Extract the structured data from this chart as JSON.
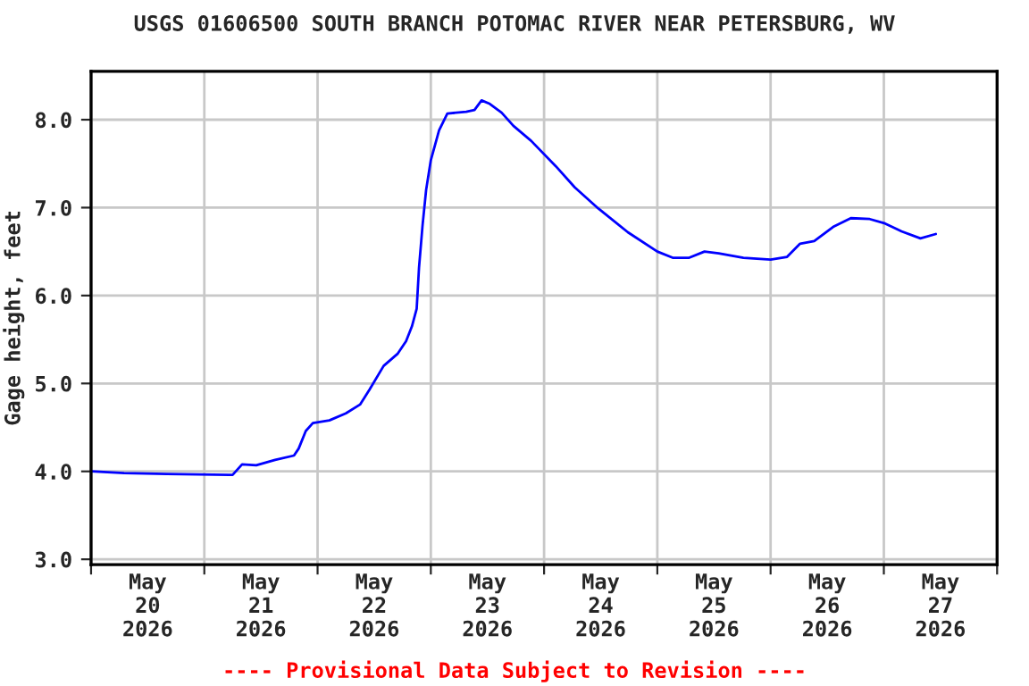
{
  "chart_data": {
    "type": "line",
    "title": "USGS 01606500 SOUTH BRANCH POTOMAC RIVER NEAR PETERSBURG, WV",
    "ylabel": "Gage height, feet",
    "annotations": [
      "---- Provisional Data Subject to Revision ----"
    ],
    "x": [
      "2026-05-20T00:00",
      "2026-05-20T07:00",
      "2026-05-20T16:00",
      "2026-05-21T06:00",
      "2026-05-21T08:00",
      "2026-05-21T11:00",
      "2026-05-21T15:00",
      "2026-05-21T19:00",
      "2026-05-21T20:00",
      "2026-05-21T21:30",
      "2026-05-21T23:00",
      "2026-05-22T02:30",
      "2026-05-22T06:00",
      "2026-05-22T09:00",
      "2026-05-22T11:00",
      "2026-05-22T14:00",
      "2026-05-22T17:00",
      "2026-05-22T18:45",
      "2026-05-22T20:00",
      "2026-05-22T21:00",
      "2026-05-22T21:30",
      "2026-05-22T22:15",
      "2026-05-22T23:00",
      "2026-05-23T00:00",
      "2026-05-23T01:45",
      "2026-05-23T03:30",
      "2026-05-23T07:30",
      "2026-05-23T09:15",
      "2026-05-23T10:45",
      "2026-05-23T12:30",
      "2026-05-23T15:00",
      "2026-05-23T17:30",
      "2026-05-23T21:15",
      "2026-05-24T02:30",
      "2026-05-24T06:30",
      "2026-05-24T11:30",
      "2026-05-24T17:45",
      "2026-05-25T00:00",
      "2026-05-25T03:15",
      "2026-05-25T06:45",
      "2026-05-25T10:00",
      "2026-05-25T13:00",
      "2026-05-25T18:15",
      "2026-05-26T00:00",
      "2026-05-26T03:30",
      "2026-05-26T06:15",
      "2026-05-26T09:15",
      "2026-05-26T13:15",
      "2026-05-26T17:00",
      "2026-05-26T21:00",
      "2026-05-27T00:15",
      "2026-05-27T03:45",
      "2026-05-27T07:45",
      "2026-05-27T11:00"
    ],
    "series": [
      {
        "color": "#0000ff",
        "values": [
          4.0,
          3.98,
          3.97,
          3.96,
          4.08,
          4.07,
          4.13,
          4.18,
          4.26,
          4.46,
          4.55,
          4.58,
          4.66,
          4.76,
          4.93,
          5.2,
          5.34,
          5.48,
          5.65,
          5.85,
          6.32,
          6.8,
          7.2,
          7.54,
          7.88,
          8.07,
          8.09,
          8.11,
          8.22,
          8.18,
          8.08,
          7.93,
          7.76,
          7.47,
          7.23,
          6.99,
          6.72,
          6.5,
          6.43,
          6.43,
          6.5,
          6.48,
          6.43,
          6.41,
          6.44,
          6.59,
          6.62,
          6.78,
          6.88,
          6.87,
          6.82,
          6.73,
          6.65,
          6.7
        ]
      }
    ],
    "xlim": [
      "2026-05-20T00:00",
      "2026-05-28T00:00"
    ],
    "xticks": [
      {
        "value": "2026-05-20T00:00",
        "label": null
      },
      {
        "value": "2026-05-20T12:00",
        "label": "May\n20\n2026"
      },
      {
        "value": "2026-05-21T00:00",
        "label": null
      },
      {
        "value": "2026-05-21T12:00",
        "label": "May\n21\n2026"
      },
      {
        "value": "2026-05-22T00:00",
        "label": null
      },
      {
        "value": "2026-05-22T12:00",
        "label": "May\n22\n2026"
      },
      {
        "value": "2026-05-23T00:00",
        "label": null
      },
      {
        "value": "2026-05-23T12:00",
        "label": "May\n23\n2026"
      },
      {
        "value": "2026-05-24T00:00",
        "label": null
      },
      {
        "value": "2026-05-24T12:00",
        "label": "May\n24\n2026"
      },
      {
        "value": "2026-05-25T00:00",
        "label": null
      },
      {
        "value": "2026-05-25T12:00",
        "label": "May\n25\n2026"
      },
      {
        "value": "2026-05-26T00:00",
        "label": null
      },
      {
        "value": "2026-05-26T12:00",
        "label": "May\n26\n2026"
      },
      {
        "value": "2026-05-27T00:00",
        "label": null
      },
      {
        "value": "2026-05-27T12:00",
        "label": "May\n27\n2026"
      },
      {
        "value": "2026-05-28T00:00",
        "label": null
      }
    ],
    "ylim": [
      2.94,
      8.55
    ],
    "yticks": [
      {
        "value": 3,
        "label": "3.0"
      },
      {
        "value": 4,
        "label": "4.0"
      },
      {
        "value": 5,
        "label": "5.0"
      },
      {
        "value": 6,
        "label": "6.0"
      },
      {
        "value": 7,
        "label": "7.0"
      },
      {
        "value": 8,
        "label": "8.0"
      }
    ],
    "grid": true,
    "marker": "none",
    "line_style": "solid",
    "legend": false
  }
}
